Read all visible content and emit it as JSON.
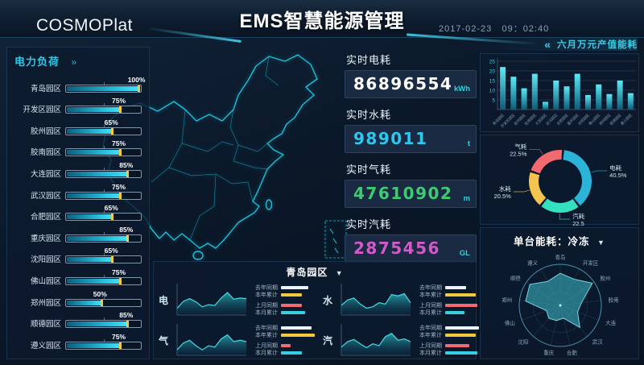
{
  "header": {
    "logo": "COSMOPlat",
    "title": "EMS智慧能源管理",
    "date": "2017-02-23",
    "time": "09：02:40"
  },
  "icons": {
    "dropdown": "▼",
    "panel_arrows": "»",
    "collapse_arrows": "«"
  },
  "accent_colors": {
    "cyan": "#35d0e0",
    "yellow": "#f0c93f",
    "red": "#ef6b72",
    "white": "#e9f3f9"
  },
  "power_load": {
    "title": "电力负荷",
    "unit": "%",
    "items": [
      {
        "name": "青岛园区",
        "value": 100
      },
      {
        "name": "开发区园区",
        "value": 75
      },
      {
        "name": "胶州园区",
        "value": 65
      },
      {
        "name": "胶南园区",
        "value": 75
      },
      {
        "name": "大连园区",
        "value": 85
      },
      {
        "name": "武汉园区",
        "value": 75
      },
      {
        "name": "合肥园区",
        "value": 65
      },
      {
        "name": "重庆园区",
        "value": 85
      },
      {
        "name": "沈阳园区",
        "value": 65
      },
      {
        "name": "佛山园区",
        "value": 75
      },
      {
        "name": "郑州园区",
        "value": 50
      },
      {
        "name": "顺德园区",
        "value": 85
      },
      {
        "name": "遵义园区",
        "value": 75
      }
    ]
  },
  "realtime_stats": [
    {
      "label": "实时电耗",
      "value": "86896554",
      "unit": "kWh",
      "color": "#ffffff"
    },
    {
      "label": "实时水耗",
      "value": "989011",
      "unit": "t",
      "color": "#2ec7ee"
    },
    {
      "label": "实时气耗",
      "value": "47610902",
      "unit": "m",
      "color": "#3ecb72"
    },
    {
      "label": "实时汽耗",
      "value": "2875456",
      "unit": "GL",
      "color": "#d358c9"
    }
  ],
  "right_header": {
    "label": "六月万元产值能耗"
  },
  "chart_data": [
    {
      "id": "monthly_energy_bar",
      "type": "bar",
      "title": "六月万元产值能耗",
      "categories": [
        "青岛园区",
        "开发区园区",
        "胶州园区",
        "胶南园区",
        "大连园区",
        "武汉园区",
        "合肥园区",
        "重庆园区",
        "沈阳园区",
        "佛山园区",
        "郑州园区",
        "顺德园区",
        "遵义园区"
      ],
      "values": [
        22,
        17,
        11,
        18.5,
        4,
        15,
        12,
        18.5,
        7.5,
        13,
        8,
        15,
        8.5
      ],
      "ylim": [
        0,
        25
      ],
      "yticks": [
        5,
        10,
        15,
        20,
        25
      ],
      "grid": true,
      "bar_color_top": "#5ce9f5",
      "bar_color_bottom": "#0b5d78"
    },
    {
      "id": "energy_share_donut",
      "type": "pie",
      "slices": [
        {
          "label": "电耗",
          "value": 40.5,
          "value_text": "40.5%",
          "color": "#2bb3d8",
          "label_side": "right"
        },
        {
          "label": "汽耗",
          "value": 22.5,
          "value_text": "22.5",
          "color": "#35e0c0",
          "label_side": "right"
        },
        {
          "label": "水耗",
          "value": 20.5,
          "value_text": "20.5%",
          "color": "#f5c44e",
          "label_side": "left"
        },
        {
          "label": "气耗",
          "value": 22.5,
          "value_text": "22.5%",
          "color": "#f2696f",
          "label_side": "left"
        }
      ]
    },
    {
      "id": "unit_energy_radar",
      "type": "radar",
      "title": "单台能耗：冷冻",
      "axes": [
        "青岛",
        "开发区",
        "胶州",
        "胶南",
        "大连",
        "武汉",
        "合肥",
        "重庆",
        "沈阳",
        "佛山",
        "郑州",
        "顺德",
        "遵义"
      ],
      "values": [
        0.78,
        0.72,
        0.95,
        0.52,
        0.45,
        0.72,
        0.32,
        0.38,
        0.42,
        0.36,
        0.85,
        0.9,
        0.66
      ],
      "max": 1
    },
    {
      "id": "park_trends",
      "type": "area",
      "title": "青岛园区",
      "legend": [
        {
          "label": "去年同期",
          "color": "#e9f3f9"
        },
        {
          "label": "本年累计",
          "color": "#f0c93f"
        },
        {
          "label": "上月同期",
          "color": "#ef6b72"
        },
        {
          "label": "本月累计",
          "color": "#35cfe0"
        }
      ],
      "charts": [
        {
          "label": "电",
          "points": [
            0.25,
            0.5,
            0.6,
            0.48,
            0.3,
            0.38,
            0.35,
            0.62,
            0.82,
            0.58,
            0.62,
            0.6
          ],
          "legend_widths": [
            34,
            26,
            26,
            30
          ]
        },
        {
          "label": "水",
          "points": [
            0.35,
            0.55,
            0.62,
            0.4,
            0.25,
            0.3,
            0.45,
            0.4,
            0.75,
            0.7,
            0.78,
            0.45
          ],
          "legend_widths": [
            26,
            38,
            40,
            24
          ]
        },
        {
          "label": "气",
          "points": [
            0.2,
            0.45,
            0.55,
            0.35,
            0.2,
            0.35,
            0.3,
            0.6,
            0.75,
            0.5,
            0.55,
            0.5
          ],
          "legend_widths": [
            38,
            42,
            12,
            26
          ]
        },
        {
          "label": "汽",
          "points": [
            0.3,
            0.5,
            0.58,
            0.42,
            0.28,
            0.42,
            0.35,
            0.68,
            0.8,
            0.55,
            0.6,
            0.5
          ],
          "legend_widths": [
            42,
            38,
            30,
            40
          ]
        }
      ]
    }
  ]
}
